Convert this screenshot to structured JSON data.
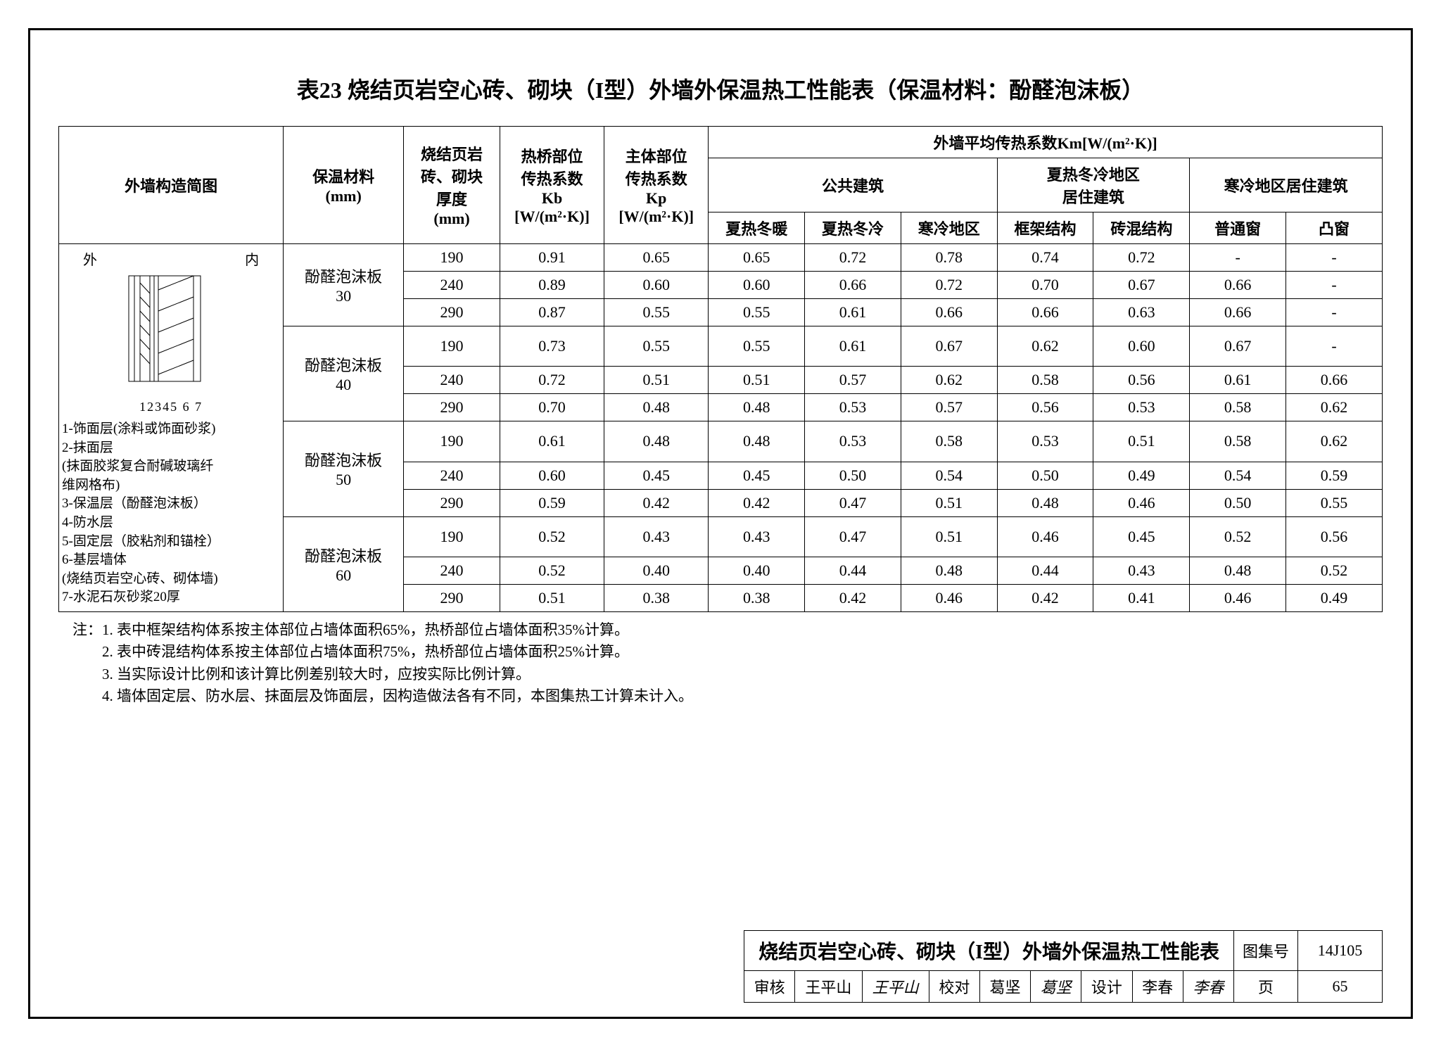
{
  "title": "表23 烧结页岩空心砖、砌块（I型）外墙外保温热工性能表（保温材料：酚醛泡沫板）",
  "headers": {
    "diagram": "外墙构造简图",
    "material": "保温材料\n(mm)",
    "thickness": "烧结页岩\n砖、砌块\n厚度\n(mm)",
    "kb_top": "热桥部位\n传热系数\nKb\n[W/(m²·K)]",
    "kp_top": "主体部位\n传热系数\nKp\n[W/(m²·K)]",
    "km_top": "外墙平均传热系数Km[W/(m²·K)]",
    "public": "公共建筑",
    "hotcold": "夏热冬冷地区\n居住建筑",
    "cold": "寒冷地区居住建筑",
    "sub": [
      "夏热冬暖",
      "夏热冬冷",
      "寒冷地区",
      "框架结构",
      "砖混结构",
      "普通窗",
      "凸窗"
    ]
  },
  "diagram_labels": {
    "outside": "外",
    "inside": "内",
    "nums": "12345  6   7"
  },
  "legend": [
    "1-饰面层(涂料或饰面砂浆)",
    "2-抹面层",
    "(抹面胶浆复合耐碱玻璃纤",
    "维网格布)",
    "3-保温层（酚醛泡沫板）",
    "4-防水层",
    "5-固定层（胶粘剂和锚栓）",
    "6-基层墙体",
    "(烧结页岩空心砖、砌体墙)",
    "7-水泥石灰砂浆20厚"
  ],
  "groups": [
    {
      "material": "酚醛泡沫板\n30",
      "rows": [
        [
          "190",
          "0.91",
          "0.65",
          "0.65",
          "0.72",
          "0.78",
          "0.74",
          "0.72",
          "-",
          "-"
        ],
        [
          "240",
          "0.89",
          "0.60",
          "0.60",
          "0.66",
          "0.72",
          "0.70",
          "0.67",
          "0.66",
          "-"
        ],
        [
          "290",
          "0.87",
          "0.55",
          "0.55",
          "0.61",
          "0.66",
          "0.66",
          "0.63",
          "0.66",
          "-"
        ]
      ]
    },
    {
      "material": "酚醛泡沫板\n40",
      "rows": [
        [
          "190",
          "0.73",
          "0.55",
          "0.55",
          "0.61",
          "0.67",
          "0.62",
          "0.60",
          "0.67",
          "-"
        ],
        [
          "240",
          "0.72",
          "0.51",
          "0.51",
          "0.57",
          "0.62",
          "0.58",
          "0.56",
          "0.61",
          "0.66"
        ],
        [
          "290",
          "0.70",
          "0.48",
          "0.48",
          "0.53",
          "0.57",
          "0.56",
          "0.53",
          "0.58",
          "0.62"
        ]
      ]
    },
    {
      "material": "酚醛泡沫板\n50",
      "rows": [
        [
          "190",
          "0.61",
          "0.48",
          "0.48",
          "0.53",
          "0.58",
          "0.53",
          "0.51",
          "0.58",
          "0.62"
        ],
        [
          "240",
          "0.60",
          "0.45",
          "0.45",
          "0.50",
          "0.54",
          "0.50",
          "0.49",
          "0.54",
          "0.59"
        ],
        [
          "290",
          "0.59",
          "0.42",
          "0.42",
          "0.47",
          "0.51",
          "0.48",
          "0.46",
          "0.50",
          "0.55"
        ]
      ]
    },
    {
      "material": "酚醛泡沫板\n60",
      "rows": [
        [
          "190",
          "0.52",
          "0.43",
          "0.43",
          "0.47",
          "0.51",
          "0.46",
          "0.45",
          "0.52",
          "0.56"
        ],
        [
          "240",
          "0.52",
          "0.40",
          "0.40",
          "0.44",
          "0.48",
          "0.44",
          "0.43",
          "0.48",
          "0.52"
        ],
        [
          "290",
          "0.51",
          "0.38",
          "0.38",
          "0.42",
          "0.46",
          "0.42",
          "0.41",
          "0.46",
          "0.49"
        ]
      ]
    }
  ],
  "notes_label": "注：",
  "notes": [
    "1. 表中框架结构体系按主体部位占墙体面积65%，热桥部位占墙体面积35%计算。",
    "2. 表中砖混结构体系按主体部位占墙体面积75%，热桥部位占墙体面积25%计算。",
    "3. 当实际设计比例和该计算比例差别较大时，应按实际比例计算。",
    "4. 墙体固定层、防水层、抹面层及饰面层，因构造做法各有不同，本图集热工计算未计入。"
  ],
  "titleblock": {
    "main": "烧结页岩空心砖、砌块（I型）外墙外保温热工性能表",
    "setnum_label": "图集号",
    "setnum": "14J105",
    "review_label": "审核",
    "review_name": "王平山",
    "review_sig": "王平山",
    "check_label": "校对",
    "check_name": "葛坚",
    "check_sig": "葛坚",
    "design_label": "设计",
    "design_name": "李春",
    "design_sig": "李春",
    "page_label": "页",
    "page": "65"
  }
}
